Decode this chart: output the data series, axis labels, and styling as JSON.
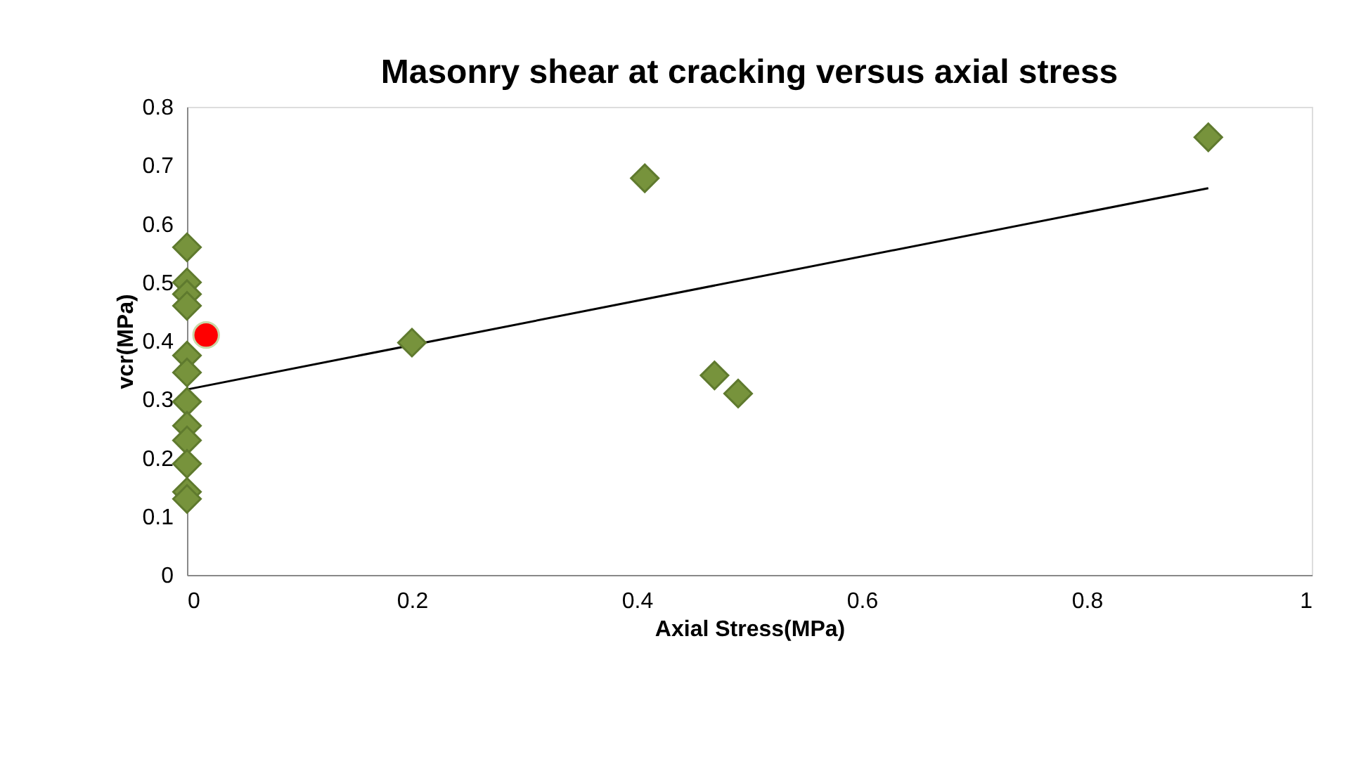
{
  "chart_data": {
    "type": "scatter",
    "title": "Masonry shear at cracking versus axial stress",
    "xlabel": "Axial Stress(MPa)",
    "ylabel": "vcr(MPa)",
    "xlim": [
      0,
      1
    ],
    "xticks": [
      0,
      0.2,
      0.4,
      0.6,
      0.8,
      1
    ],
    "ylim": [
      0,
      0.8
    ],
    "yticks": [
      0,
      0.1,
      0.2,
      0.3,
      0.4,
      0.5,
      0.6,
      0.7,
      0.8
    ],
    "grid": false,
    "series": [
      {
        "type": "line",
        "color": "#000000",
        "marker": "none",
        "x": [
          0,
          0.908
        ],
        "values": [
          0.317,
          0.661
        ]
      },
      {
        "color": "#77933c",
        "marker": "diamond",
        "x": [
          0,
          0,
          0,
          0,
          0,
          0,
          0,
          0,
          0,
          0,
          0,
          0,
          0.2,
          0.407,
          0.469,
          0.49,
          0.908
        ],
        "values": [
          0.56,
          0.5,
          0.48,
          0.46,
          0.375,
          0.346,
          0.296,
          0.255,
          0.23,
          0.19,
          0.142,
          0.13,
          0.397,
          0.678,
          0.341,
          0.31,
          0.748
        ]
      },
      {
        "type": "scatter",
        "color": "#ff0000",
        "marker": "circle",
        "x": [
          0.017
        ],
        "values": [
          0.41
        ]
      }
    ]
  }
}
